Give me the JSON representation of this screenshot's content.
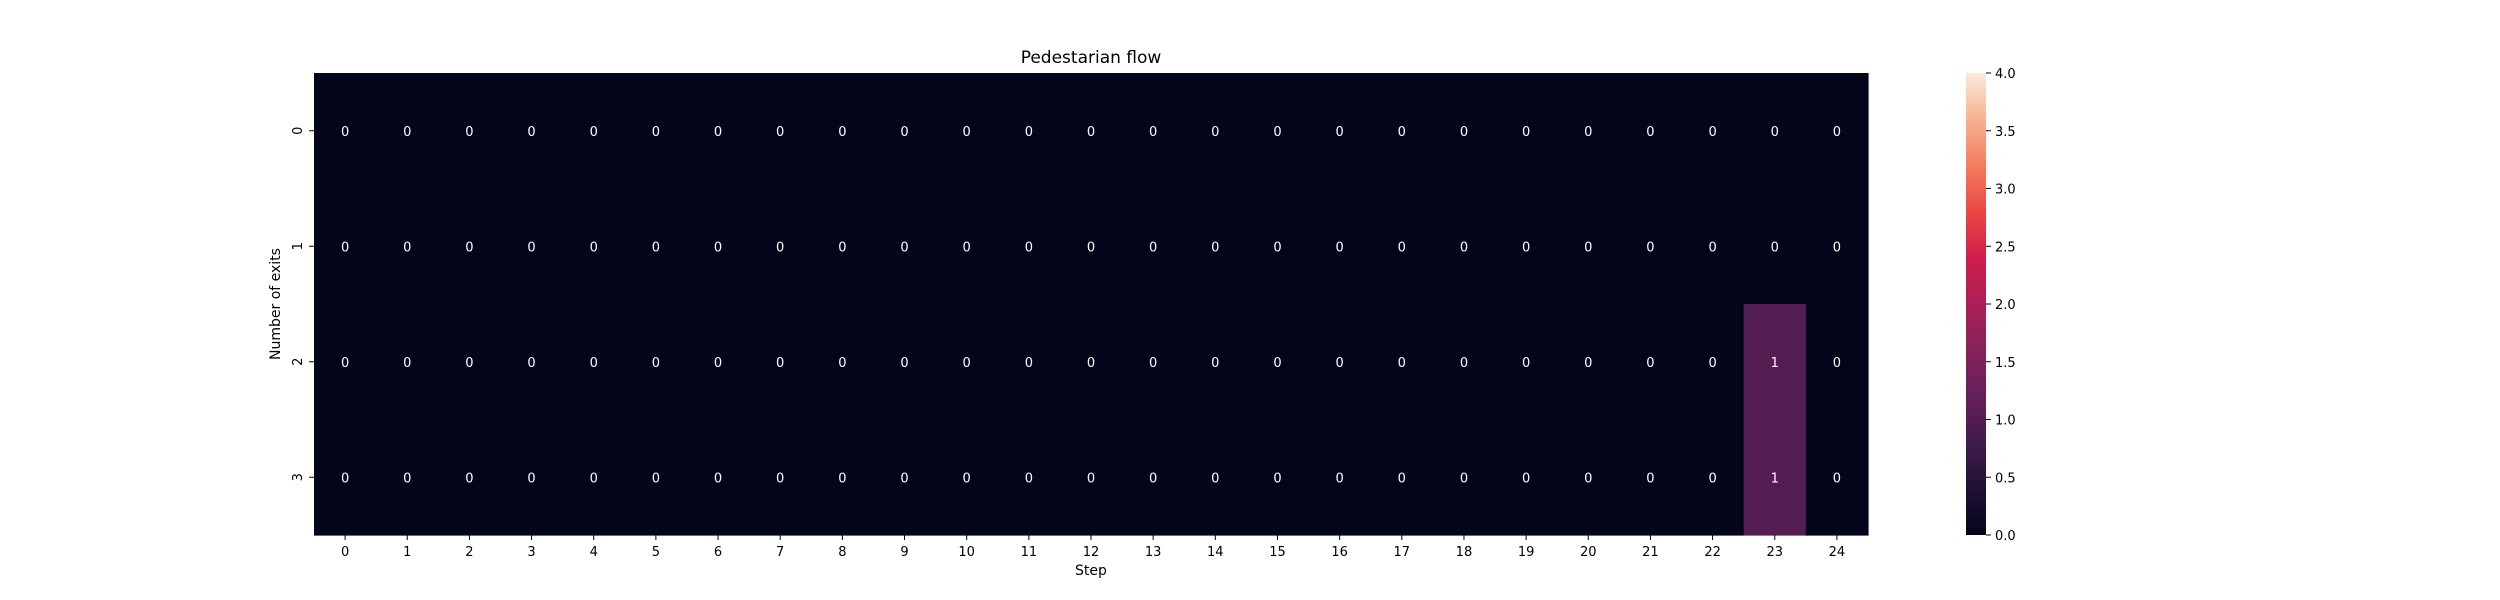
{
  "chart_data": {
    "type": "heatmap",
    "title": "Pedestarian flow",
    "xlabel": "Step",
    "ylabel": "Number of exits",
    "x": [
      0,
      1,
      2,
      3,
      4,
      5,
      6,
      7,
      8,
      9,
      10,
      11,
      12,
      13,
      14,
      15,
      16,
      17,
      18,
      19,
      20,
      21,
      22,
      23,
      24
    ],
    "y": [
      0,
      1,
      2,
      3
    ],
    "values": [
      [
        0,
        0,
        0,
        0,
        0,
        0,
        0,
        0,
        0,
        0,
        0,
        0,
        0,
        0,
        0,
        0,
        0,
        0,
        0,
        0,
        0,
        0,
        0,
        0,
        0
      ],
      [
        0,
        0,
        0,
        0,
        0,
        0,
        0,
        0,
        0,
        0,
        0,
        0,
        0,
        0,
        0,
        0,
        0,
        0,
        0,
        0,
        0,
        0,
        0,
        0,
        0
      ],
      [
        0,
        0,
        0,
        0,
        0,
        0,
        0,
        0,
        0,
        0,
        0,
        0,
        0,
        0,
        0,
        0,
        0,
        0,
        0,
        0,
        0,
        0,
        0,
        1,
        0
      ],
      [
        0,
        0,
        0,
        0,
        0,
        0,
        0,
        0,
        0,
        0,
        0,
        0,
        0,
        0,
        0,
        0,
        0,
        0,
        0,
        0,
        0,
        0,
        0,
        1,
        0
      ]
    ],
    "annotate": true,
    "colorbar": {
      "range": [
        0,
        4
      ],
      "ticks": [
        "0.0",
        "0.5",
        "1.0",
        "1.5",
        "2.0",
        "2.5",
        "3.0",
        "3.5",
        "4.0"
      ],
      "colormap": "rocket"
    }
  }
}
